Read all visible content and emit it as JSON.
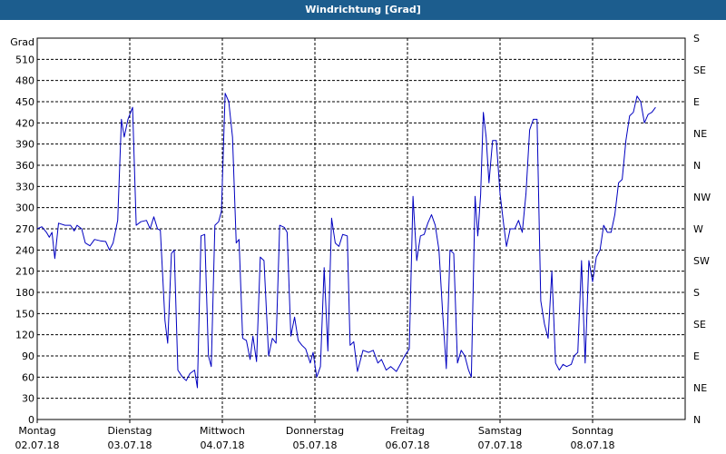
{
  "title": "Windrichtung [Grad]",
  "chart_data": {
    "type": "line",
    "title": "Windrichtung [Grad]",
    "ylabel": "Grad",
    "ylim": [
      0,
      540
    ],
    "y_ticks": [
      0,
      30,
      60,
      90,
      120,
      150,
      180,
      210,
      240,
      270,
      300,
      330,
      360,
      390,
      420,
      450,
      480,
      510
    ],
    "right_axis_labels": [
      "N",
      "NE",
      "E",
      "SE",
      "S",
      "SW",
      "W",
      "NW",
      "N",
      "NE",
      "E",
      "SE",
      "S"
    ],
    "right_axis_values": [
      0,
      45,
      90,
      135,
      180,
      225,
      270,
      315,
      360,
      405,
      450,
      495,
      540
    ],
    "xlim": [
      0,
      7
    ],
    "x_ticks": [
      {
        "day": "Montag",
        "date": "02.07.18"
      },
      {
        "day": "Dienstag",
        "date": "03.07.18"
      },
      {
        "day": "Mittwoch",
        "date": "04.07.18"
      },
      {
        "day": "Donnerstag",
        "date": "05.07.18"
      },
      {
        "day": "Freitag",
        "date": "06.07.18"
      },
      {
        "day": "Samstag",
        "date": "07.07.18"
      },
      {
        "day": "Sonntag",
        "date": "08.07.18"
      }
    ],
    "grid": true,
    "series": [
      {
        "color": "#0000c0",
        "points": [
          [
            0.0,
            270
          ],
          [
            0.05,
            273
          ],
          [
            0.1,
            265
          ],
          [
            0.13,
            258
          ],
          [
            0.16,
            265
          ],
          [
            0.19,
            228
          ],
          [
            0.23,
            278
          ],
          [
            0.3,
            275
          ],
          [
            0.36,
            275
          ],
          [
            0.4,
            267
          ],
          [
            0.43,
            275
          ],
          [
            0.48,
            270
          ],
          [
            0.52,
            250
          ],
          [
            0.57,
            246
          ],
          [
            0.62,
            255
          ],
          [
            0.68,
            253
          ],
          [
            0.74,
            252
          ],
          [
            0.78,
            240
          ],
          [
            0.82,
            250
          ],
          [
            0.87,
            282
          ],
          [
            0.91,
            425
          ],
          [
            0.94,
            400
          ],
          [
            0.98,
            425
          ],
          [
            1.03,
            442
          ],
          [
            1.07,
            275
          ],
          [
            1.12,
            280
          ],
          [
            1.18,
            282
          ],
          [
            1.22,
            270
          ],
          [
            1.26,
            287
          ],
          [
            1.3,
            270
          ],
          [
            1.33,
            268
          ],
          [
            1.38,
            140
          ],
          [
            1.41,
            108
          ],
          [
            1.45,
            235
          ],
          [
            1.48,
            240
          ],
          [
            1.52,
            70
          ],
          [
            1.57,
            60
          ],
          [
            1.61,
            55
          ],
          [
            1.65,
            65
          ],
          [
            1.7,
            70
          ],
          [
            1.73,
            45
          ],
          [
            1.77,
            260
          ],
          [
            1.81,
            262
          ],
          [
            1.85,
            90
          ],
          [
            1.88,
            75
          ],
          [
            1.92,
            275
          ],
          [
            1.96,
            280
          ],
          [
            1.99,
            295
          ],
          [
            2.03,
            462
          ],
          [
            2.07,
            450
          ],
          [
            2.11,
            400
          ],
          [
            2.15,
            250
          ],
          [
            2.18,
            255
          ],
          [
            2.22,
            115
          ],
          [
            2.26,
            112
          ],
          [
            2.3,
            85
          ],
          [
            2.33,
            118
          ],
          [
            2.37,
            82
          ],
          [
            2.41,
            230
          ],
          [
            2.45,
            225
          ],
          [
            2.5,
            90
          ],
          [
            2.54,
            115
          ],
          [
            2.58,
            108
          ],
          [
            2.62,
            275
          ],
          [
            2.67,
            272
          ],
          [
            2.7,
            265
          ],
          [
            2.74,
            118
          ],
          [
            2.78,
            145
          ],
          [
            2.82,
            112
          ],
          [
            2.86,
            105
          ],
          [
            2.9,
            100
          ],
          [
            2.95,
            80
          ],
          [
            2.98,
            95
          ],
          [
            3.02,
            60
          ],
          [
            3.06,
            75
          ],
          [
            3.1,
            215
          ],
          [
            3.14,
            97
          ],
          [
            3.18,
            285
          ],
          [
            3.22,
            250
          ],
          [
            3.26,
            245
          ],
          [
            3.3,
            262
          ],
          [
            3.35,
            260
          ],
          [
            3.38,
            105
          ],
          [
            3.42,
            110
          ],
          [
            3.46,
            68
          ],
          [
            3.52,
            98
          ],
          [
            3.58,
            95
          ],
          [
            3.63,
            98
          ],
          [
            3.68,
            80
          ],
          [
            3.72,
            85
          ],
          [
            3.77,
            70
          ],
          [
            3.82,
            75
          ],
          [
            3.88,
            68
          ],
          [
            3.93,
            80
          ],
          [
            3.97,
            90
          ],
          [
            4.02,
            100
          ],
          [
            4.06,
            316
          ],
          [
            4.1,
            225
          ],
          [
            4.14,
            260
          ],
          [
            4.18,
            262
          ],
          [
            4.22,
            278
          ],
          [
            4.26,
            290
          ],
          [
            4.3,
            275
          ],
          [
            4.34,
            240
          ],
          [
            4.38,
            150
          ],
          [
            4.42,
            72
          ],
          [
            4.46,
            240
          ],
          [
            4.5,
            235
          ],
          [
            4.54,
            80
          ],
          [
            4.58,
            98
          ],
          [
            4.62,
            90
          ],
          [
            4.66,
            70
          ],
          [
            4.69,
            60
          ],
          [
            4.73,
            316
          ],
          [
            4.76,
            260
          ],
          [
            4.79,
            318
          ],
          [
            4.82,
            435
          ],
          [
            4.85,
            400
          ],
          [
            4.88,
            335
          ],
          [
            4.92,
            395
          ],
          [
            4.96,
            395
          ],
          [
            5.0,
            320
          ],
          [
            5.04,
            275
          ],
          [
            5.07,
            245
          ],
          [
            5.11,
            270
          ],
          [
            5.16,
            270
          ],
          [
            5.2,
            282
          ],
          [
            5.24,
            265
          ],
          [
            5.28,
            320
          ],
          [
            5.32,
            410
          ],
          [
            5.36,
            425
          ],
          [
            5.4,
            425
          ],
          [
            5.44,
            168
          ],
          [
            5.48,
            135
          ],
          [
            5.52,
            115
          ],
          [
            5.56,
            210
          ],
          [
            5.6,
            80
          ],
          [
            5.64,
            70
          ],
          [
            5.68,
            78
          ],
          [
            5.72,
            75
          ],
          [
            5.77,
            78
          ],
          [
            5.8,
            90
          ],
          [
            5.84,
            95
          ],
          [
            5.88,
            225
          ],
          [
            5.92,
            80
          ],
          [
            5.96,
            225
          ],
          [
            6.0,
            195
          ],
          [
            6.04,
            230
          ],
          [
            6.08,
            240
          ],
          [
            6.12,
            275
          ],
          [
            6.16,
            265
          ],
          [
            6.2,
            265
          ],
          [
            6.24,
            290
          ],
          [
            6.28,
            335
          ],
          [
            6.32,
            340
          ],
          [
            6.36,
            395
          ],
          [
            6.4,
            430
          ],
          [
            6.44,
            435
          ],
          [
            6.48,
            458
          ],
          [
            6.52,
            450
          ],
          [
            6.56,
            420
          ],
          [
            6.6,
            432
          ],
          [
            6.64,
            435
          ],
          [
            6.68,
            442
          ]
        ]
      }
    ]
  }
}
